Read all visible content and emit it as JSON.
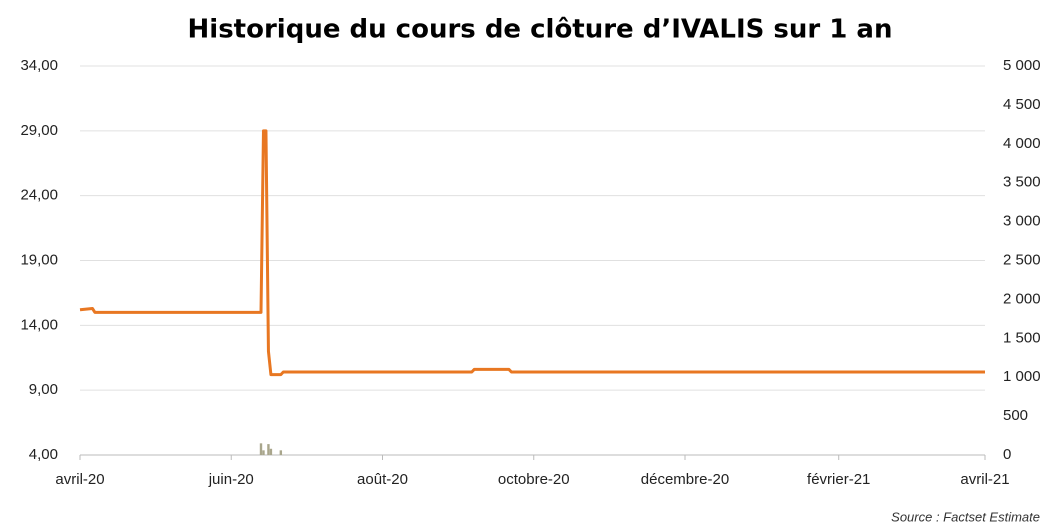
{
  "chart_data": {
    "type": "line",
    "title": "Historique du cours de clôture d’IVALIS sur 1 an",
    "source": "Source : Factset Estimate",
    "xlim": [
      0,
      365
    ],
    "xticks": [
      {
        "value": 0,
        "label": "avril-20"
      },
      {
        "value": 61,
        "label": "juin-20"
      },
      {
        "value": 122,
        "label": "août-20"
      },
      {
        "value": 183,
        "label": "octobre-20"
      },
      {
        "value": 244,
        "label": "décembre-20"
      },
      {
        "value": 306,
        "label": "février-21"
      },
      {
        "value": 365,
        "label": "avril-21"
      }
    ],
    "ylim": [
      4,
      34
    ],
    "yticks": [
      {
        "value": 4,
        "label": "4,00"
      },
      {
        "value": 9,
        "label": "9,00"
      },
      {
        "value": 14,
        "label": "14,00"
      },
      {
        "value": 19,
        "label": "19,00"
      },
      {
        "value": 24,
        "label": "24,00"
      },
      {
        "value": 29,
        "label": "29,00"
      },
      {
        "value": 34,
        "label": "34,00"
      }
    ],
    "y2lim": [
      0,
      5000
    ],
    "y2ticks": [
      0,
      500,
      {
        "value": 1000,
        "label": "1 000"
      },
      {
        "value": 1500,
        "label": "1 500"
      },
      {
        "value": 2000,
        "label": "2 000"
      },
      {
        "value": 2500,
        "label": "2 500"
      },
      {
        "value": 3000,
        "label": "3 000"
      },
      {
        "value": 3500,
        "label": "3 500"
      },
      {
        "value": 4000,
        "label": "4 000"
      },
      {
        "value": 4500,
        "label": "4 500"
      },
      {
        "value": 5000,
        "label": "5 000"
      }
    ],
    "grid": true,
    "series": [
      {
        "type": "line",
        "color": "#e87722",
        "x": [
          0,
          5,
          6,
          73,
          74,
          75,
          76,
          77,
          81,
          82,
          158,
          159,
          173,
          174,
          365
        ],
        "values": [
          15.2,
          15.3,
          15.0,
          15.0,
          29.0,
          29.0,
          12.0,
          10.2,
          10.2,
          10.4,
          10.4,
          10.6,
          10.6,
          10.4,
          10.4
        ]
      },
      {
        "type": "bar",
        "axis": "y2",
        "color": "#a9a68c",
        "x": [
          73,
          74,
          76,
          77,
          81
        ],
        "values": [
          150,
          60,
          140,
          80,
          60
        ]
      }
    ]
  }
}
